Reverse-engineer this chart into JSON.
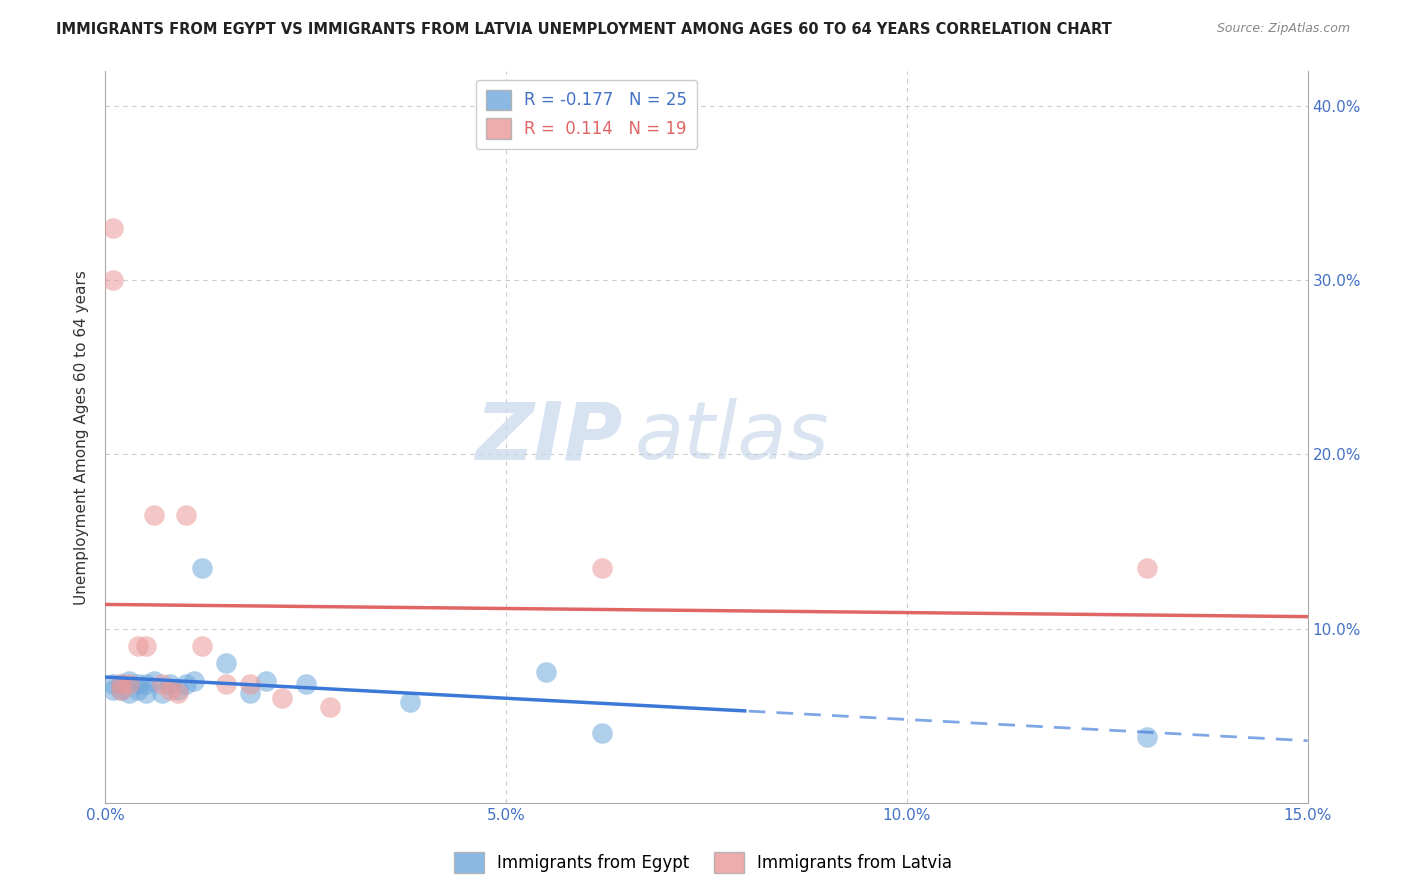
{
  "title": "IMMIGRANTS FROM EGYPT VS IMMIGRANTS FROM LATVIA UNEMPLOYMENT AMONG AGES 60 TO 64 YEARS CORRELATION CHART",
  "source": "Source: ZipAtlas.com",
  "ylabel": "Unemployment Among Ages 60 to 64 years",
  "xlim": [
    0.0,
    0.15
  ],
  "ylim": [
    0.0,
    0.42
  ],
  "xticks": [
    0.0,
    0.05,
    0.1,
    0.15
  ],
  "xticklabels": [
    "0.0%",
    "5.0%",
    "10.0%",
    "15.0%"
  ],
  "yticks": [
    0.0,
    0.1,
    0.2,
    0.3,
    0.4
  ],
  "right_yticklabels": [
    "",
    "10.0%",
    "20.0%",
    "30.0%",
    "40.0%"
  ],
  "egypt_R": -0.177,
  "egypt_N": 25,
  "latvia_R": 0.114,
  "latvia_N": 19,
  "egypt_color": "#6fa8dc",
  "latvia_color": "#ea9999",
  "egypt_line_color": "#3c78d8",
  "latvia_line_color": "#e06666",
  "watermark_zip": "ZIP",
  "watermark_atlas": "atlas",
  "background_color": "#ffffff",
  "grid_color": "#cccccc",
  "egypt_x": [
    0.001,
    0.001,
    0.002,
    0.002,
    0.003,
    0.003,
    0.004,
    0.004,
    0.005,
    0.005,
    0.006,
    0.007,
    0.008,
    0.009,
    0.01,
    0.011,
    0.012,
    0.015,
    0.018,
    0.02,
    0.025,
    0.038,
    0.055,
    0.062,
    0.13
  ],
  "egypt_y": [
    0.065,
    0.068,
    0.065,
    0.068,
    0.063,
    0.07,
    0.065,
    0.068,
    0.063,
    0.068,
    0.07,
    0.063,
    0.068,
    0.065,
    0.068,
    0.07,
    0.135,
    0.08,
    0.063,
    0.07,
    0.068,
    0.058,
    0.075,
    0.04,
    0.038
  ],
  "latvia_x": [
    0.001,
    0.001,
    0.002,
    0.002,
    0.003,
    0.004,
    0.005,
    0.006,
    0.007,
    0.008,
    0.009,
    0.01,
    0.012,
    0.015,
    0.018,
    0.022,
    0.028,
    0.062,
    0.13
  ],
  "latvia_y": [
    0.33,
    0.3,
    0.068,
    0.065,
    0.068,
    0.09,
    0.09,
    0.165,
    0.068,
    0.065,
    0.063,
    0.165,
    0.09,
    0.068,
    0.068,
    0.06,
    0.055,
    0.135,
    0.135
  ],
  "solid_limit": 0.08,
  "axis_color": "#4472c4",
  "title_fontsize": 10.5,
  "source_fontsize": 9,
  "tick_fontsize": 11,
  "ylabel_fontsize": 11,
  "legend_fontsize": 12
}
